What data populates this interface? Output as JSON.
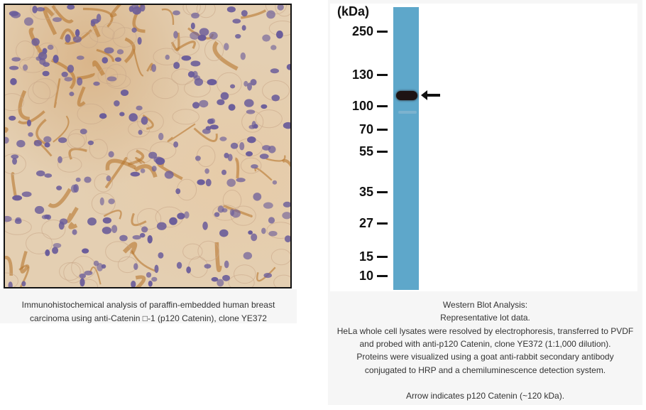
{
  "left_panel": {
    "image": "ihc-breast-carcinoma-micrograph",
    "caption_lines": [
      "Immunohistochemical analysis of paraffin-embedded human breast",
      "carcinoma using anti-Catenin □-1 (p120 Catenin), clone YE372"
    ]
  },
  "right_panel": {
    "unit_label": "(kDa)",
    "markers": [
      "250",
      "130",
      "100",
      "70",
      "55",
      "35",
      "27",
      "15",
      "10"
    ],
    "arrow_icon": "left-arrow",
    "lane_color": "#5ea7ca",
    "caption_lines": [
      "Western Blot Analysis:",
      "Representative lot data.",
      "HeLa whole cell lysates were resolved by electrophoresis, transferred to PVDF",
      "and probed with anti-p120 Catenin, clone YE372 (1:1,000 dilution).",
      "Proteins were visualized using a goat anti-rabbit secondary antibody",
      "conjugated to HRP and a chemiluminescence detection system.",
      "",
      "Arrow indicates p120 Catenin (~120 kDa)."
    ]
  }
}
